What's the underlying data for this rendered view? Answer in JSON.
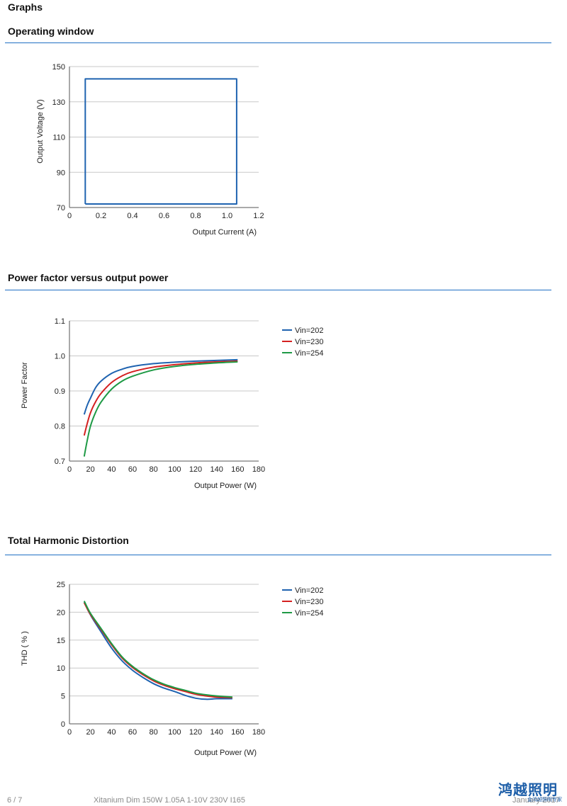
{
  "page": {
    "heading": "Graphs",
    "footer": {
      "page_number": "6 / 7",
      "product": "Xitanium Dim 150W 1.05A 1-10V 230V I165",
      "date": "January 2017"
    },
    "logo": {
      "text": "鸿越照明",
      "subtext": "金鸿越照明专家"
    }
  },
  "colors": {
    "accent": "#1f6fc4",
    "vin202": "#1f63b0",
    "vin230": "#d42020",
    "vin254": "#1e9a45",
    "grid": "#c8c8c8"
  },
  "sections": [
    {
      "title": "Operating window"
    },
    {
      "title": "Power factor versus output power"
    },
    {
      "title": "Total Harmonic Distortion"
    }
  ],
  "chart_data": [
    {
      "type": "line",
      "title": "Operating window",
      "xlabel": "Output Current (A)",
      "ylabel": "Output Voltage (V)",
      "xlim": [
        0,
        1.2
      ],
      "ylim": [
        70,
        150
      ],
      "xticks": [
        "0",
        "0.2",
        "0.4",
        "0.6",
        "0.8",
        "1.0",
        "1.2"
      ],
      "yticks": [
        "70",
        "90",
        "110",
        "130",
        "150"
      ],
      "grid": true,
      "series": [
        {
          "color": "#1f63b0",
          "x": [
            0.1,
            1.06,
            1.06,
            0.1,
            0.1
          ],
          "y": [
            72,
            72,
            143,
            143,
            72
          ]
        }
      ]
    },
    {
      "type": "line",
      "title": "Power factor versus output power",
      "xlabel": "Output Power (W)",
      "ylabel": "Power Factor",
      "xlim": [
        0,
        180
      ],
      "ylim": [
        0.7,
        1.1
      ],
      "xticks": [
        "0",
        "20",
        "40",
        "60",
        "80",
        "100",
        "120",
        "140",
        "160",
        "180"
      ],
      "yticks": [
        "0.7",
        "0.8",
        "0.9",
        "1.0",
        "1.1"
      ],
      "grid": true,
      "legend": "right",
      "series": [
        {
          "name": "Vin=202",
          "color": "#1f63b0",
          "x": [
            14,
            17,
            20,
            25,
            30,
            40,
            50,
            60,
            80,
            100,
            120,
            140,
            160
          ],
          "y": [
            0.833,
            0.86,
            0.88,
            0.91,
            0.928,
            0.95,
            0.962,
            0.97,
            0.978,
            0.982,
            0.985,
            0.987,
            0.989
          ]
        },
        {
          "name": "Vin=230",
          "color": "#d42020",
          "x": [
            14,
            17,
            20,
            25,
            30,
            40,
            50,
            60,
            80,
            100,
            120,
            140,
            160
          ],
          "y": [
            0.773,
            0.808,
            0.838,
            0.87,
            0.893,
            0.924,
            0.943,
            0.955,
            0.968,
            0.975,
            0.98,
            0.983,
            0.985
          ]
        },
        {
          "name": "Vin=254",
          "color": "#1e9a45",
          "x": [
            14,
            17,
            20,
            25,
            30,
            40,
            50,
            60,
            80,
            100,
            120,
            140,
            160
          ],
          "y": [
            0.713,
            0.76,
            0.8,
            0.84,
            0.868,
            0.905,
            0.928,
            0.942,
            0.96,
            0.97,
            0.976,
            0.98,
            0.983
          ]
        }
      ]
    },
    {
      "type": "line",
      "title": "Total Harmonic Distortion",
      "xlabel": "Output Power (W)",
      "ylabel": "THD ( % )",
      "xlim": [
        0,
        180
      ],
      "ylim": [
        0,
        25
      ],
      "xticks": [
        "0",
        "20",
        "40",
        "60",
        "80",
        "100",
        "120",
        "140",
        "160",
        "180"
      ],
      "yticks": [
        "0",
        "5",
        "10",
        "15",
        "20",
        "25"
      ],
      "grid": true,
      "legend": "right",
      "series": [
        {
          "name": "Vin=202",
          "color": "#1f63b0",
          "x": [
            14,
            20,
            30,
            40,
            50,
            60,
            70,
            80,
            90,
            100,
            110,
            120,
            130,
            140,
            155
          ],
          "y": [
            21.8,
            19.5,
            16.5,
            13.6,
            11.3,
            9.6,
            8.3,
            7.2,
            6.4,
            5.8,
            5.1,
            4.6,
            4.4,
            4.5,
            4.5
          ]
        },
        {
          "name": "Vin=230",
          "color": "#d42020",
          "x": [
            14,
            20,
            30,
            40,
            50,
            60,
            70,
            80,
            90,
            100,
            110,
            120,
            130,
            140,
            155
          ],
          "y": [
            21.7,
            19.6,
            16.9,
            14.2,
            11.8,
            10.1,
            8.8,
            7.7,
            6.9,
            6.3,
            5.8,
            5.3,
            5.0,
            4.8,
            4.7
          ]
        },
        {
          "name": "Vin=254",
          "color": "#1e9a45",
          "x": [
            14,
            20,
            30,
            40,
            50,
            60,
            70,
            80,
            90,
            100,
            110,
            120,
            130,
            140,
            155
          ],
          "y": [
            22.0,
            19.8,
            17.1,
            14.4,
            12.0,
            10.3,
            9.0,
            7.9,
            7.1,
            6.5,
            6.0,
            5.5,
            5.2,
            5.0,
            4.8
          ]
        }
      ]
    }
  ]
}
